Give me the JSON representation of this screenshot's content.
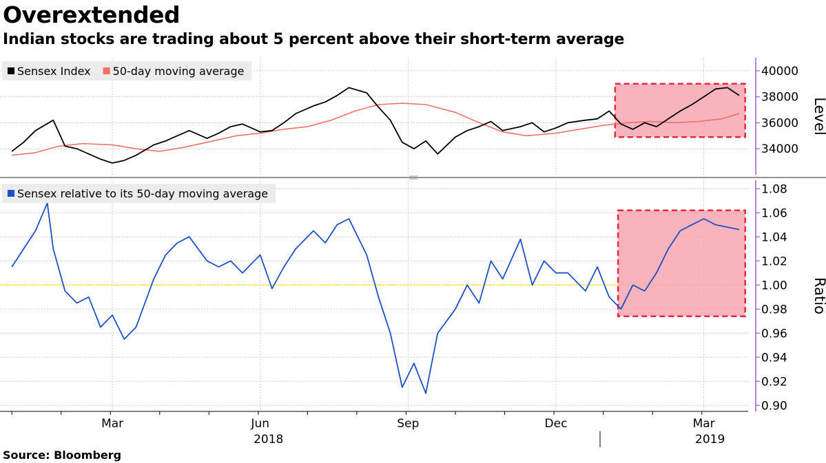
{
  "title": "Overextended",
  "subtitle": "Indian stocks are trading about 5 percent above their short-term average",
  "source": "Source: Bloomberg",
  "colors": {
    "sensex": "#000000",
    "ma": "#f0706a",
    "ratio": "#1f4fc4",
    "baseline": "#ffee00",
    "highlight_fill": "#f7a6b0",
    "highlight_stroke": "#e8263f",
    "axis": "#9b59e6",
    "grid": "#cfcfcf"
  },
  "chart_data": [
    {
      "type": "line",
      "title": "",
      "ylabel": "Level",
      "ylim": [
        32000,
        41000
      ],
      "yticks": [
        "34000",
        "36000",
        "38000",
        "40000"
      ],
      "ytick_values": [
        34000,
        36000,
        38000,
        40000
      ],
      "legend": [
        "Sensex Index",
        "50-day moving average"
      ],
      "highlight": {
        "x_start": 2019.02,
        "x_end": 2019.24,
        "y_start": 34900,
        "y_end": 39000
      },
      "series": [
        {
          "name": "Sensex Index",
          "x": [
            2018.0,
            2018.02,
            2018.04,
            2018.07,
            2018.09,
            2018.11,
            2018.13,
            2018.15,
            2018.17,
            2018.19,
            2018.21,
            2018.24,
            2018.26,
            2018.28,
            2018.3,
            2018.33,
            2018.35,
            2018.37,
            2018.39,
            2018.42,
            2018.44,
            2018.46,
            2018.48,
            2018.51,
            2018.53,
            2018.55,
            2018.57,
            2018.6,
            2018.62,
            2018.64,
            2018.66,
            2018.68,
            2018.7,
            2018.72,
            2018.75,
            2018.77,
            2018.79,
            2018.81,
            2018.83,
            2018.86,
            2018.88,
            2018.9,
            2018.92,
            2018.94,
            2018.97,
            2018.99,
            2019.01,
            2019.03,
            2019.05,
            2019.07,
            2019.09,
            2019.11,
            2019.13,
            2019.15,
            2019.17,
            2019.19,
            2019.21,
            2019.23
          ],
          "values": [
            33800,
            34500,
            35400,
            36200,
            34200,
            34000,
            33600,
            33200,
            32900,
            33100,
            33500,
            34300,
            34600,
            35000,
            35400,
            34800,
            35200,
            35700,
            35900,
            35300,
            35400,
            36000,
            36700,
            37300,
            37600,
            38100,
            38700,
            38300,
            37200,
            36200,
            34500,
            34000,
            34600,
            33600,
            34900,
            35400,
            35700,
            36100,
            35400,
            35700,
            36000,
            35300,
            35600,
            36000,
            36200,
            36300,
            36900,
            35900,
            35500,
            36000,
            35700,
            36300,
            36900,
            37400,
            38000,
            38600,
            38700,
            38100
          ]
        },
        {
          "name": "50-day moving average",
          "x": [
            2018.0,
            2018.04,
            2018.08,
            2018.12,
            2018.17,
            2018.21,
            2018.25,
            2018.29,
            2018.33,
            2018.38,
            2018.42,
            2018.46,
            2018.5,
            2018.54,
            2018.58,
            2018.62,
            2018.66,
            2018.7,
            2018.75,
            2018.79,
            2018.83,
            2018.87,
            2018.92,
            2018.96,
            2019.0,
            2019.04,
            2019.08,
            2019.12,
            2019.16,
            2019.2,
            2019.23
          ],
          "values": [
            33500,
            33700,
            34200,
            34400,
            34300,
            34000,
            33800,
            34100,
            34500,
            35000,
            35200,
            35500,
            35700,
            36200,
            36900,
            37400,
            37500,
            37400,
            36800,
            36000,
            35300,
            35000,
            35200,
            35500,
            35800,
            36000,
            36100,
            36000,
            36100,
            36300,
            36700
          ]
        }
      ]
    },
    {
      "type": "line",
      "title": "",
      "ylabel": "Ratio",
      "ylim": [
        0.895,
        1.087
      ],
      "yticks": [
        "0.90",
        "0.92",
        "0.94",
        "0.96",
        "0.98",
        "1.00",
        "1.02",
        "1.04",
        "1.06",
        "1.08"
      ],
      "ytick_values": [
        0.9,
        0.92,
        0.94,
        0.96,
        0.98,
        1.0,
        1.02,
        1.04,
        1.06,
        1.08
      ],
      "baseline": 1.0,
      "legend": [
        "Sensex relative to its 50-day moving average"
      ],
      "highlight": {
        "x_start": 2019.025,
        "x_end": 2019.24,
        "y_start": 0.974,
        "y_end": 1.062
      },
      "series": [
        {
          "name": "Sensex relative to its 50-day moving average",
          "x": [
            2018.0,
            2018.02,
            2018.04,
            2018.06,
            2018.07,
            2018.09,
            2018.11,
            2018.13,
            2018.15,
            2018.17,
            2018.19,
            2018.21,
            2018.24,
            2018.26,
            2018.28,
            2018.3,
            2018.33,
            2018.35,
            2018.37,
            2018.39,
            2018.42,
            2018.44,
            2018.46,
            2018.48,
            2018.51,
            2018.53,
            2018.55,
            2018.57,
            2018.6,
            2018.62,
            2018.64,
            2018.66,
            2018.68,
            2018.7,
            2018.72,
            2018.75,
            2018.77,
            2018.79,
            2018.81,
            2018.83,
            2018.86,
            2018.88,
            2018.9,
            2018.92,
            2018.94,
            2018.97,
            2018.99,
            2019.01,
            2019.03,
            2019.05,
            2019.07,
            2019.09,
            2019.11,
            2019.13,
            2019.15,
            2019.17,
            2019.19,
            2019.21,
            2019.23
          ],
          "values": [
            1.015,
            1.03,
            1.045,
            1.068,
            1.03,
            0.995,
            0.985,
            0.99,
            0.965,
            0.975,
            0.955,
            0.965,
            1.005,
            1.025,
            1.035,
            1.04,
            1.02,
            1.015,
            1.02,
            1.01,
            1.025,
            0.997,
            1.015,
            1.03,
            1.045,
            1.035,
            1.05,
            1.055,
            1.025,
            0.99,
            0.96,
            0.915,
            0.935,
            0.91,
            0.96,
            0.98,
            1.0,
            0.985,
            1.02,
            1.005,
            1.038,
            1.0,
            1.02,
            1.01,
            1.01,
            0.995,
            1.015,
            0.99,
            0.98,
            1.0,
            0.995,
            1.01,
            1.03,
            1.045,
            1.05,
            1.055,
            1.05,
            1.048,
            1.046
          ]
        }
      ]
    }
  ],
  "x_axis": {
    "range": [
      2017.98,
      2019.245
    ],
    "tick_labels": [
      {
        "label": "Mar",
        "x": 2018.17
      },
      {
        "label": "Jun",
        "x": 2018.42
      },
      {
        "label": "Sep",
        "x": 2018.67
      },
      {
        "label": "Dec",
        "x": 2018.92
      },
      {
        "label": "Mar",
        "x": 2019.17
      }
    ],
    "year_labels": [
      {
        "label": "2018",
        "x": 2018.42
      },
      {
        "label": "2019",
        "x": 2019.12
      }
    ]
  }
}
